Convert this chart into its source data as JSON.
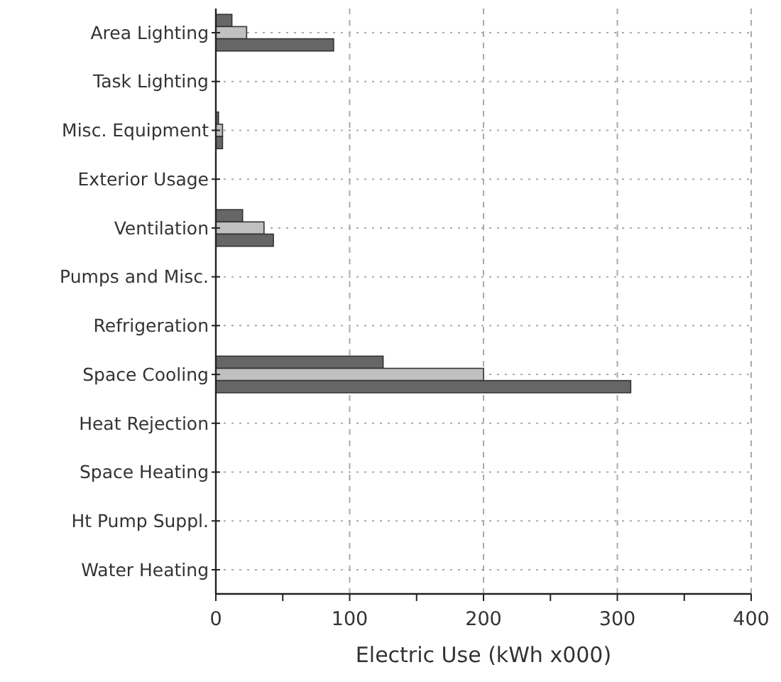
{
  "chart_data": {
    "type": "bar",
    "orientation": "horizontal",
    "xlabel": "Electric Use (kWh x000)",
    "categories": [
      "Area Lighting",
      "Task Lighting",
      "Misc. Equipment",
      "Exterior Usage",
      "Ventilation",
      "Pumps and Misc.",
      "Refrigeration",
      "Space Cooling",
      "Heat Rejection",
      "Space Heating",
      "Ht Pump Suppl.",
      "Water Heating"
    ],
    "series": [
      {
        "color": "#666666",
        "values": [
          12,
          0,
          2,
          0,
          20,
          0,
          0,
          125,
          0,
          0,
          0,
          0
        ]
      },
      {
        "color": "#c0c0c0",
        "values": [
          23,
          0,
          5,
          0,
          36,
          0,
          0,
          200,
          0,
          0,
          0,
          0
        ]
      },
      {
        "color": "#666666",
        "values": [
          88,
          0,
          5,
          0,
          43,
          0,
          0,
          310,
          0,
          0,
          0,
          0
        ]
      }
    ],
    "xlim": [
      0,
      400
    ],
    "xticks": [
      0,
      {
        "value": 50,
        "label": null
      },
      100,
      {
        "value": 150,
        "label": null
      },
      200,
      {
        "value": 250,
        "label": null
      },
      300,
      {
        "value": 350,
        "label": null
      },
      400
    ],
    "grid": true
  }
}
